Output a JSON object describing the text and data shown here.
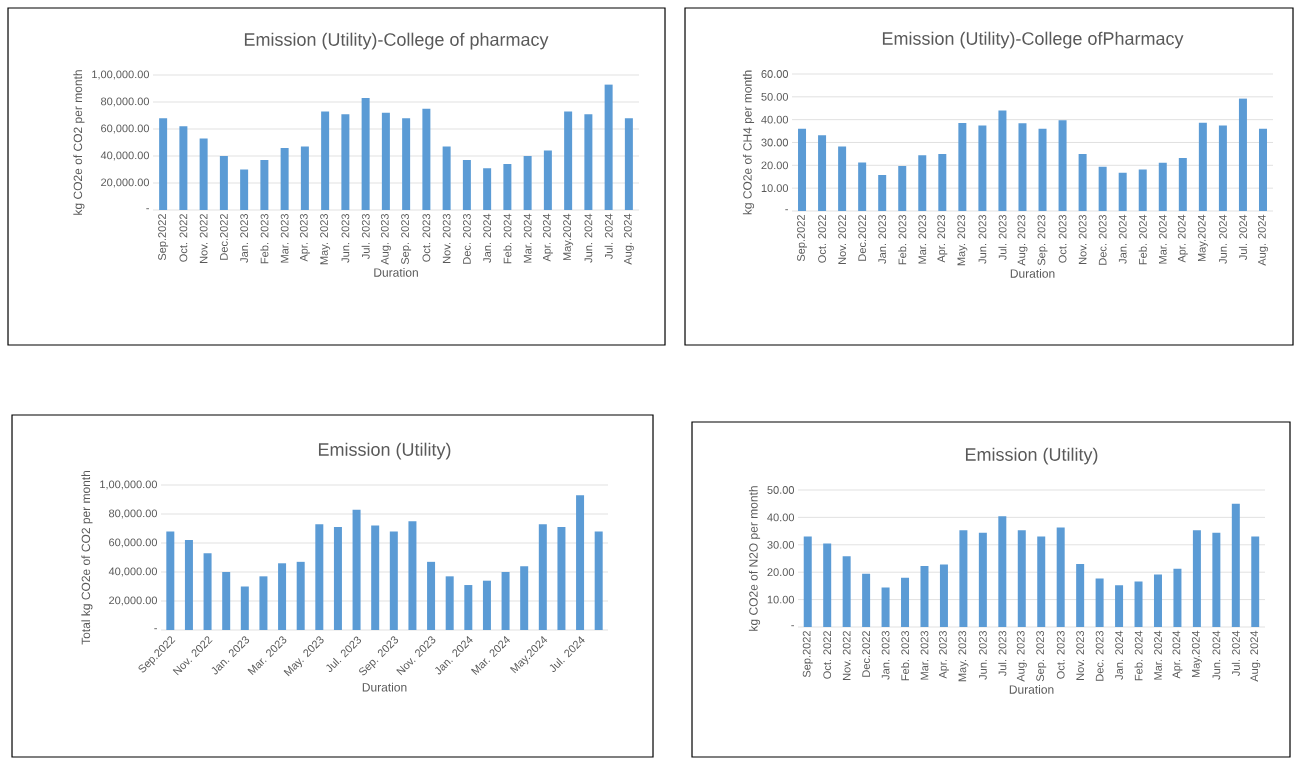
{
  "chart_data": [
    {
      "type": "bar",
      "title": "Emission (Utility)-College of pharmacy",
      "xlabel": "Duration",
      "ylabel": "kg CO2e of CO2  per month",
      "color": "#5b9bd5",
      "grid": "y",
      "categories": [
        "Sep.2022",
        "Oct. 2022",
        "Nov. 2022",
        "Dec.2022",
        "Jan. 2023",
        "Feb. 2023",
        "Mar. 2023",
        "Apr. 2023",
        "May. 2023",
        "Jun. 2023",
        "Jul. 2023",
        "Aug. 2023",
        "Sep. 2023",
        "Oct. 2023",
        "Nov. 2023",
        "Dec. 2023",
        "Jan. 2024",
        "Feb. 2024",
        "Mar. 2024",
        "Apr. 2024",
        "May.2024",
        "Jun. 2024",
        "Jul. 2024",
        "Aug. 2024"
      ],
      "values": [
        68000,
        62000,
        53000,
        40000,
        30000,
        37000,
        46000,
        47000,
        73000,
        71000,
        83000,
        72000,
        68000,
        75000,
        47000,
        37000,
        31000,
        34000,
        40000,
        44000,
        73000,
        71000,
        93000,
        68000
      ],
      "ylim": [
        0,
        100000
      ],
      "yticks": [
        {
          "value": 0,
          "label": "-"
        },
        {
          "value": 20000,
          "label": "20,000.00"
        },
        {
          "value": 40000,
          "label": "40,000.00"
        },
        {
          "value": 60000,
          "label": "60,000.00"
        },
        {
          "value": 80000,
          "label": "80,000.00"
        },
        {
          "value": 100000,
          "label": "1,00,000.00"
        }
      ]
    },
    {
      "type": "bar",
      "title": "Emission (Utility)-College ofPharmacy",
      "xlabel": "Duration",
      "ylabel": "kg CO2e of CH4  per month",
      "color": "#5b9bd5",
      "grid": "y",
      "categories": [
        "Sep.2022",
        "Oct. 2022",
        "Nov. 2022",
        "Dec.2022",
        "Jan. 2023",
        "Feb. 2023",
        "Mar. 2023",
        "Apr. 2023",
        "May. 2023",
        "Jun. 2023",
        "Jul. 2023",
        "Aug. 2023",
        "Sep. 2023",
        "Oct. 2023",
        "Nov. 2023",
        "Dec. 2023",
        "Jan. 2024",
        "Feb. 2024",
        "Mar. 2024",
        "Apr. 2024",
        "May.2024",
        "Jun. 2024",
        "Jul. 2024",
        "Aug. 2024"
      ],
      "values": [
        36,
        33.2,
        28.2,
        21.2,
        15.8,
        19.7,
        24.4,
        25,
        38.5,
        37.4,
        44,
        38.4,
        36,
        39.7,
        25,
        19.4,
        16.8,
        18.2,
        21.1,
        23.2,
        38.6,
        37.4,
        49.3,
        36
      ],
      "ylim": [
        0,
        60
      ],
      "yticks": [
        {
          "value": 0,
          "label": "-"
        },
        {
          "value": 10,
          "label": "10.00"
        },
        {
          "value": 20,
          "label": "20.00"
        },
        {
          "value": 30,
          "label": "30.00"
        },
        {
          "value": 40,
          "label": "40.00"
        },
        {
          "value": 50,
          "label": "50.00"
        },
        {
          "value": 60,
          "label": "60.00"
        }
      ]
    },
    {
      "type": "bar",
      "title": "Emission (Utility)",
      "xlabel": "Duration",
      "ylabel": "Total kg CO2e of CO2  per month",
      "color": "#5b9bd5",
      "grid": "y",
      "categories": [
        "Sep.2022",
        null,
        "Nov. 2022",
        null,
        "Jan. 2023",
        null,
        "Mar. 2023",
        null,
        "May. 2023",
        null,
        "Jul. 2023",
        null,
        "Sep. 2023",
        null,
        "Nov. 2023",
        null,
        "Jan. 2024",
        null,
        "Mar. 2024",
        null,
        "May.2024",
        null,
        "Jul. 2024",
        null
      ],
      "values": [
        68000,
        62000,
        53000,
        40000,
        30000,
        37000,
        46000,
        47000,
        73000,
        71000,
        83000,
        72000,
        68000,
        75000,
        47000,
        37000,
        31000,
        34000,
        40000,
        44000,
        73000,
        71000,
        93000,
        68000
      ],
      "ylim": [
        0,
        100000
      ],
      "yticks": [
        {
          "value": 0,
          "label": "-"
        },
        {
          "value": 20000,
          "label": "20,000.00"
        },
        {
          "value": 40000,
          "label": "40,000.00"
        },
        {
          "value": 60000,
          "label": "60,000.00"
        },
        {
          "value": 80000,
          "label": "80,000.00"
        },
        {
          "value": 100000,
          "label": "1,00,000.00"
        }
      ]
    },
    {
      "type": "bar",
      "title": "Emission (Utility)",
      "xlabel": "Duration",
      "ylabel": "kg CO2e of N2O  per month",
      "color": "#5b9bd5",
      "grid": "y",
      "categories": [
        "Sep.2022",
        "Oct. 2022",
        "Nov. 2022",
        "Dec.2022",
        "Jan. 2023",
        "Feb. 2023",
        "Mar. 2023",
        "Apr. 2023",
        "May. 2023",
        "Jun. 2023",
        "Jul. 2023",
        "Aug. 2023",
        "Sep. 2023",
        "Oct. 2023",
        "Nov. 2023",
        "Dec. 2023",
        "Jan. 2024",
        "Feb. 2024",
        "Mar. 2024",
        "Apr. 2024",
        "May.2024",
        "Jun. 2024",
        "Jul. 2024",
        "Aug. 2024"
      ],
      "values": [
        33,
        30.5,
        25.8,
        19.4,
        14.4,
        18,
        22.3,
        22.8,
        35.3,
        34.4,
        40.4,
        35.3,
        33,
        36.3,
        23,
        17.7,
        15.2,
        16.6,
        19.2,
        21.3,
        35.3,
        34.4,
        45,
        33
      ],
      "ylim": [
        0,
        50
      ],
      "yticks": [
        {
          "value": 0,
          "label": "-"
        },
        {
          "value": 10,
          "label": "10.00"
        },
        {
          "value": 20,
          "label": "20.00"
        },
        {
          "value": 30,
          "label": "30.00"
        },
        {
          "value": 40,
          "label": "40.00"
        },
        {
          "value": 50,
          "label": "50.00"
        }
      ]
    }
  ]
}
